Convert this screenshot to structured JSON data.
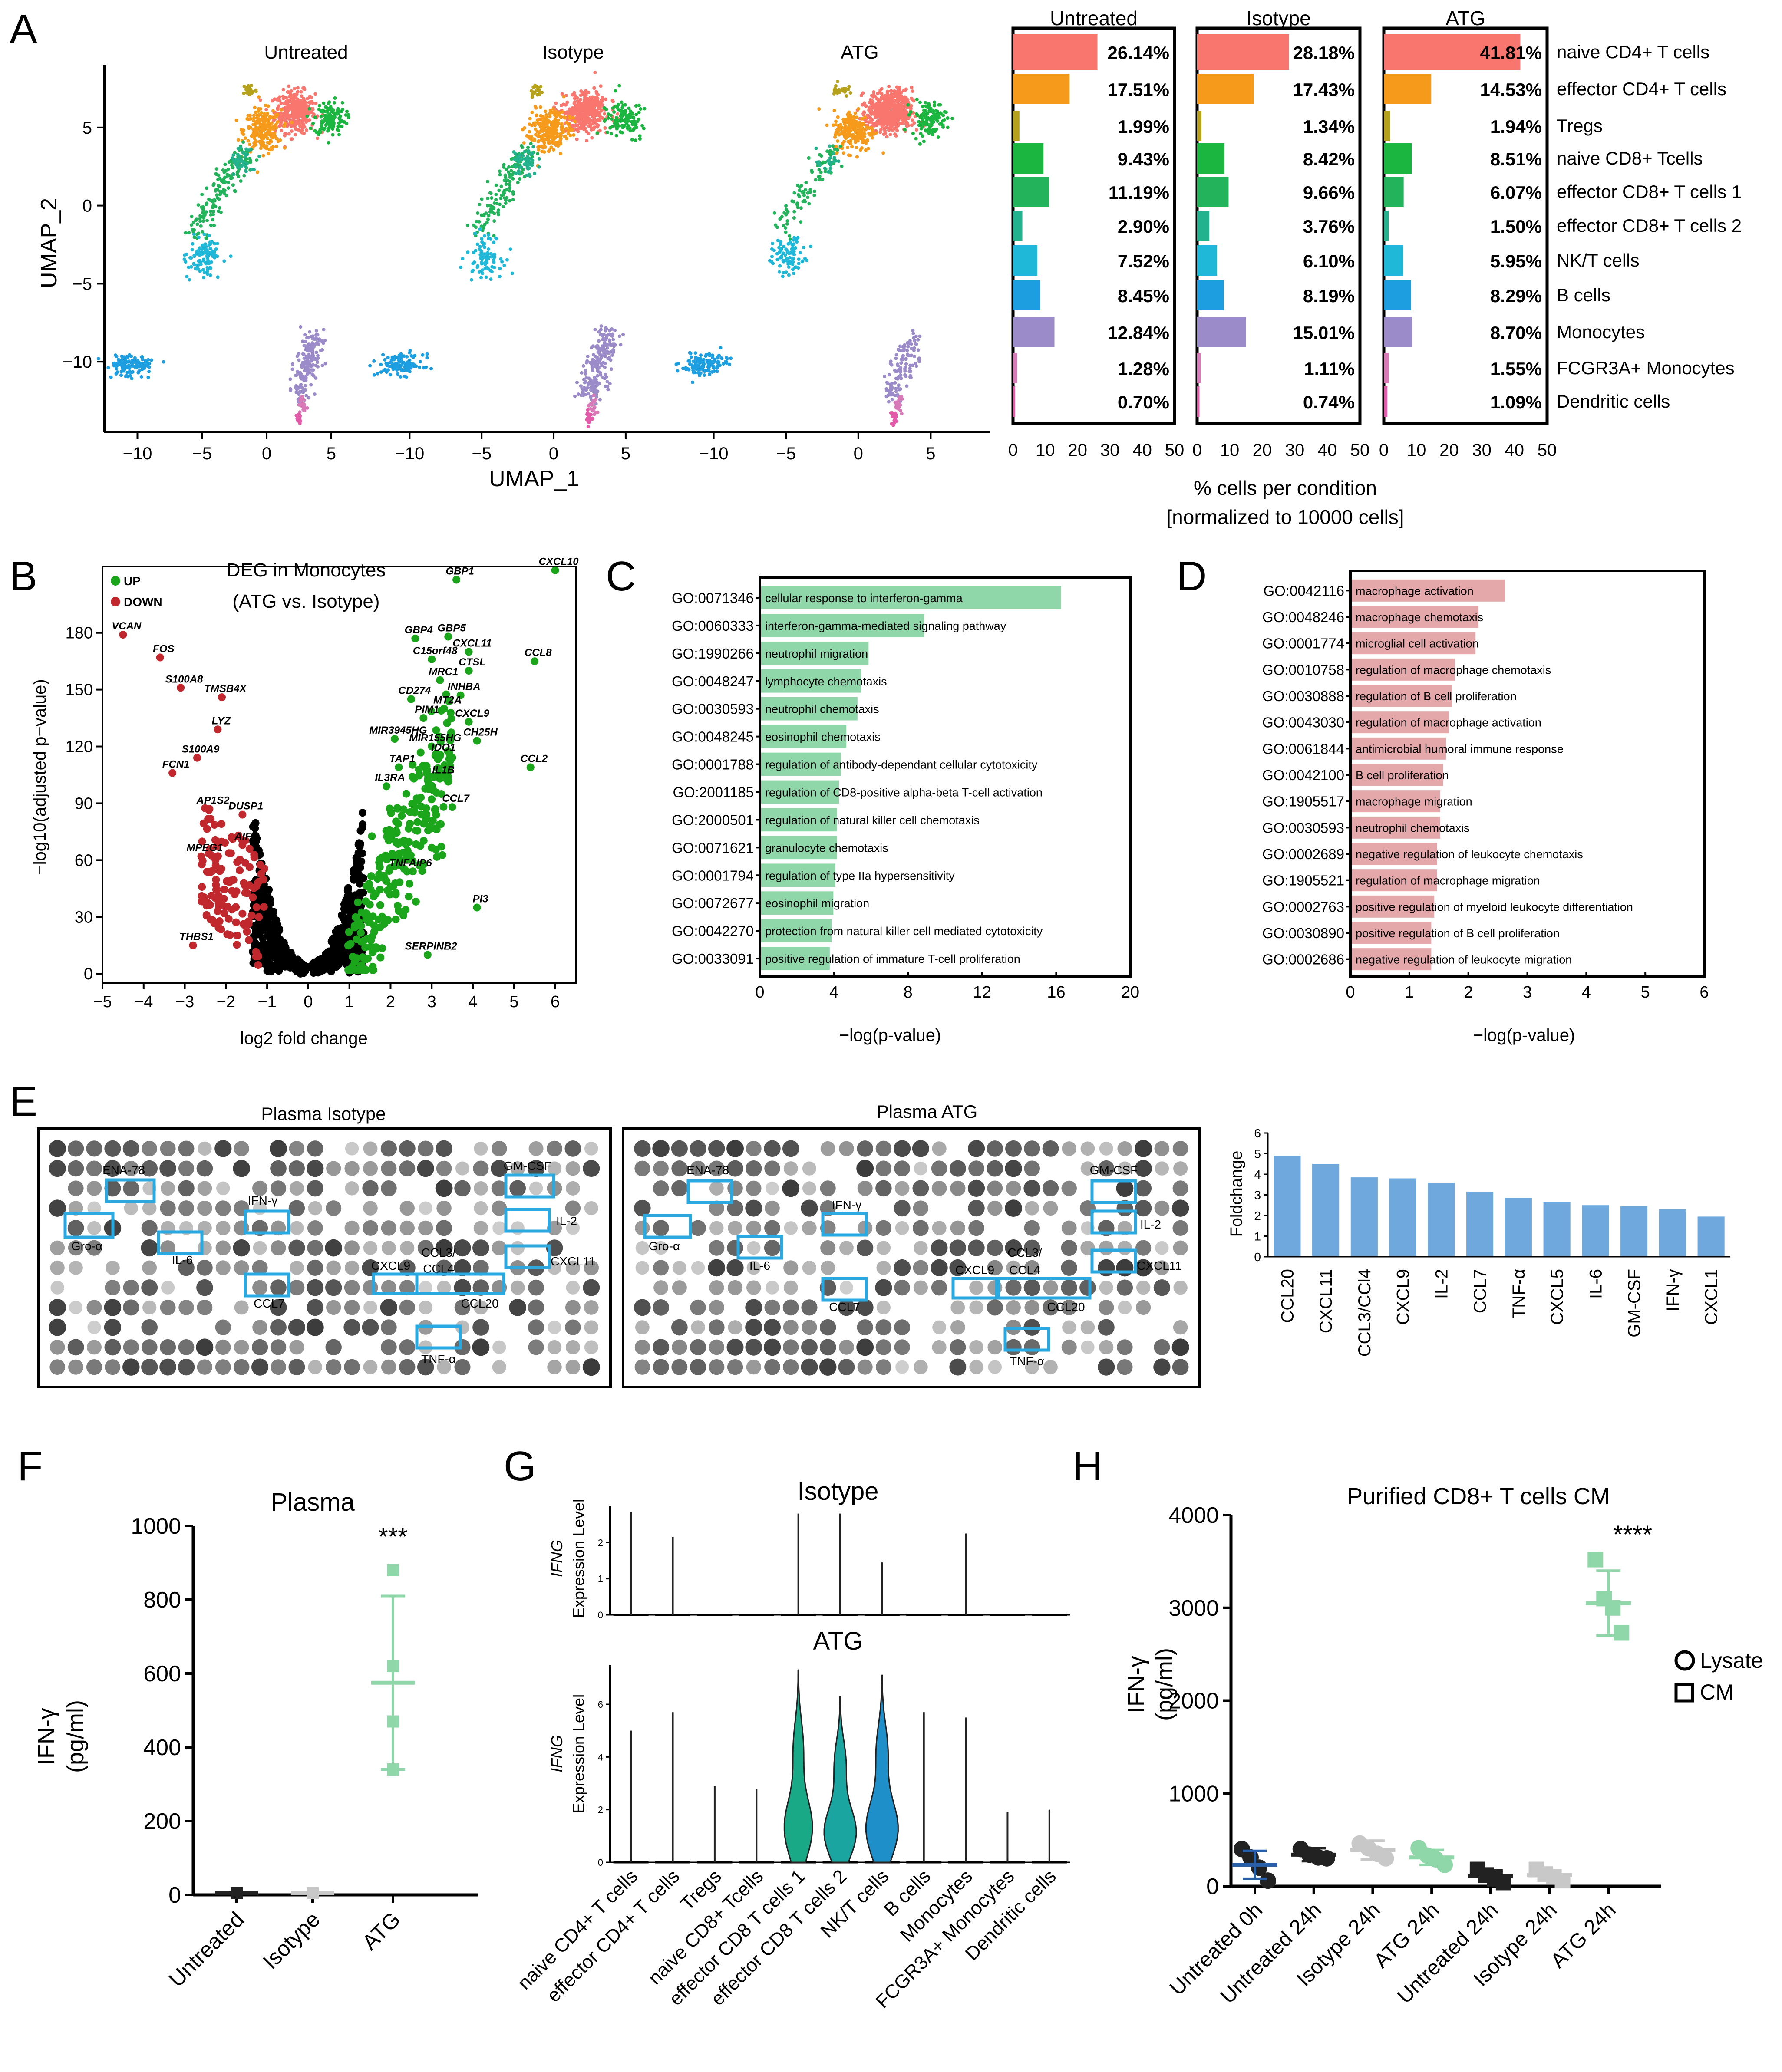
{
  "panel_letters": [
    "A",
    "B",
    "C",
    "D",
    "E",
    "F",
    "G",
    "H"
  ],
  "colors": {
    "naive_cd4": "#f8766d",
    "effector_cd4": "#f59a1a",
    "tregs": "#b5a11c",
    "naive_cd8": "#1ab63f",
    "eff_cd8_1": "#22b35b",
    "eff_cd8_2": "#22b38e",
    "nk_t": "#1fb8d9",
    "b_cells": "#1d9ee0",
    "monocytes": "#9b8cc9",
    "fcgr3a_mono": "#d97ab8",
    "dendritic": "#e35ba8",
    "up": "#1aa51a",
    "down": "#c0282d",
    "ns": "#000000",
    "go_green": "#8fd6a8",
    "go_pink": "#e4a7aa",
    "cytokine_bar": "#6fa8dc",
    "array_box": "#29a9e0",
    "untreated": "#222222",
    "isotype": "#c8c8c8",
    "atg": "#8fd6a8",
    "violin_green": "#1aa987",
    "violin_teal": "#1aa5a0",
    "violin_blue": "#1e8fc8"
  },
  "panel_a": {
    "umap": {
      "titles": [
        "Untreated",
        "Isotype",
        "ATG"
      ],
      "xlabel": "UMAP_1",
      "ylabel": "UMAP_2",
      "xticks": [
        -10,
        -5,
        0,
        5
      ],
      "yticks": [
        5,
        0,
        -5,
        -10
      ],
      "xlim": [
        -12,
        8.5
      ],
      "ylim": [
        -14.5,
        9
      ],
      "clusters": [
        {
          "cluster": "naive CD4+ T cells",
          "x": 2.2,
          "y": 6.0,
          "sx": 1.4,
          "sy": 1.2
        },
        {
          "cluster": "effector CD4+ T cells",
          "x": -0.3,
          "y": 4.8,
          "sx": 1.3,
          "sy": 1.2
        },
        {
          "cluster": "Tregs",
          "x": -1.3,
          "y": 7.4,
          "sx": 0.5,
          "sy": 0.4
        },
        {
          "cluster": "naive CD8+ Tcells",
          "x": 4.9,
          "y": 5.6,
          "sx": 1.1,
          "sy": 1.0
        },
        {
          "cluster": "effector CD8+ T cells 1",
          "x": -3.6,
          "y": 0.6,
          "sx": 1.1,
          "sy": 1.6
        },
        {
          "cluster": "effector CD8+ T cells 2",
          "x": -2.0,
          "y": 2.8,
          "sx": 0.8,
          "sy": 0.9
        },
        {
          "cluster": "NK/T cells",
          "x": -4.8,
          "y": -3.2,
          "sx": 1.1,
          "sy": 1.2
        },
        {
          "cluster": "B cells",
          "x": -10.6,
          "y": -10.2,
          "sx": 1.4,
          "sy": 0.6
        },
        {
          "cluster": "Monocytes",
          "x": 3.2,
          "y": -10.6,
          "sx": 1.0,
          "sy": 1.6
        },
        {
          "cluster": "FCGR3A+ Monocytes",
          "x": 2.8,
          "y": -12.8,
          "sx": 0.3,
          "sy": 0.6
        },
        {
          "cluster": "Dendritic cells",
          "x": 2.5,
          "y": -13.6,
          "sx": 0.2,
          "sy": 0.4
        }
      ]
    },
    "composition": {
      "conditions": [
        "Untreated",
        "Isotype",
        "ATG"
      ],
      "cell_types": [
        "naive CD4+ T cells",
        "effector CD4+ T cells",
        "Tregs",
        "naive CD8+ Tcells",
        "effector CD8+ T cells 1",
        "effector CD8+ T cells 2",
        "NK/T cells",
        "B cells",
        "Monocytes",
        "FCGR3A+ Monocytes",
        "Dendritic cells"
      ],
      "values": {
        "Untreated": [
          26.14,
          17.51,
          1.99,
          9.43,
          11.19,
          2.9,
          7.52,
          8.45,
          12.84,
          1.28,
          0.7
        ],
        "Isotype": [
          28.18,
          17.43,
          1.34,
          8.42,
          9.66,
          3.76,
          6.1,
          8.19,
          15.01,
          1.11,
          0.74
        ],
        "ATG": [
          41.81,
          14.53,
          1.94,
          8.51,
          6.07,
          1.5,
          5.95,
          8.29,
          8.7,
          1.55,
          1.09
        ]
      },
      "labels": {
        "Untreated": [
          "26.14%",
          "17.51%",
          "1.99%",
          "9.43%",
          "11.19%",
          "2.90%",
          "7.52%",
          "8.45%",
          "12.84%",
          "1.28%",
          "0.70%"
        ],
        "Isotype": [
          "28.18%",
          "17.43%",
          "1.34%",
          "8.42%",
          "9.66%",
          "3.76%",
          "6.10%",
          "8.19%",
          "15.01%",
          "1.11%",
          "0.74%"
        ],
        "ATG": [
          "41.81%",
          "14.53%",
          "1.94%",
          "8.51%",
          "6.07%",
          "1.50%",
          "5.95%",
          "8.29%",
          "8.70%",
          "1.55%",
          "1.09%"
        ]
      },
      "xticks": [
        0,
        10,
        20,
        30,
        40,
        50
      ],
      "xlim": [
        0,
        50
      ],
      "xlabel_line1": "% cells per condition",
      "xlabel_line2": "[normalized to 10000 cells]"
    }
  },
  "panel_b": {
    "title_line1": "DEG in Monocytes",
    "title_line2": "(ATG vs. Isotype)",
    "legend_up": "UP",
    "legend_down": "DOWN",
    "xlabel": "log2 fold change",
    "ylabel": "−log10(adjusted p−value)",
    "xticks": [
      -5,
      -4,
      -3,
      -2,
      -1,
      0,
      1,
      2,
      3,
      4,
      5,
      6
    ],
    "yticks": [
      0,
      30,
      60,
      90,
      120,
      150,
      180
    ],
    "xlim": [
      -5,
      6.5
    ],
    "ylim": [
      -5,
      215
    ],
    "up_genes": [
      {
        "gene": "GBP1",
        "x": 3.6,
        "y": 208
      },
      {
        "gene": "CXCL10",
        "x": 6.0,
        "y": 213
      },
      {
        "gene": "GBP4",
        "x": 2.6,
        "y": 177
      },
      {
        "gene": "GBP5",
        "x": 3.4,
        "y": 178
      },
      {
        "gene": "CXCL11",
        "x": 3.9,
        "y": 170
      },
      {
        "gene": "CCL8",
        "x": 5.5,
        "y": 165
      },
      {
        "gene": "C15orf48",
        "x": 3.0,
        "y": 166
      },
      {
        "gene": "CTSL",
        "x": 3.9,
        "y": 160
      },
      {
        "gene": "MRC1",
        "x": 3.2,
        "y": 155
      },
      {
        "gene": "INHBA",
        "x": 3.7,
        "y": 147
      },
      {
        "gene": "CD274",
        "x": 2.5,
        "y": 145
      },
      {
        "gene": "MT2A",
        "x": 3.3,
        "y": 140
      },
      {
        "gene": "PIM1",
        "x": 2.8,
        "y": 135
      },
      {
        "gene": "CXCL9",
        "x": 3.9,
        "y": 133
      },
      {
        "gene": "MIR3945HG",
        "x": 2.1,
        "y": 124
      },
      {
        "gene": "MIR155HG",
        "x": 3.0,
        "y": 120
      },
      {
        "gene": "CH25H",
        "x": 4.1,
        "y": 123
      },
      {
        "gene": "IDO1",
        "x": 3.2,
        "y": 115
      },
      {
        "gene": "TAP1",
        "x": 2.2,
        "y": 109
      },
      {
        "gene": "IL1B",
        "x": 3.2,
        "y": 103
      },
      {
        "gene": "CCL2",
        "x": 5.4,
        "y": 109
      },
      {
        "gene": "IL3RA",
        "x": 1.9,
        "y": 99
      },
      {
        "gene": "CCL7",
        "x": 3.5,
        "y": 88
      },
      {
        "gene": "TNFAIP6",
        "x": 2.4,
        "y": 54
      },
      {
        "gene": "PI3",
        "x": 4.1,
        "y": 35
      },
      {
        "gene": "SERPINB2",
        "x": 2.9,
        "y": 10
      }
    ],
    "down_genes": [
      {
        "gene": "VCAN",
        "x": -4.5,
        "y": 179
      },
      {
        "gene": "FOS",
        "x": -3.6,
        "y": 167
      },
      {
        "gene": "S100A8",
        "x": -3.1,
        "y": 151
      },
      {
        "gene": "TMSB4X",
        "x": -2.1,
        "y": 146
      },
      {
        "gene": "LYZ",
        "x": -2.2,
        "y": 129
      },
      {
        "gene": "S100A9",
        "x": -2.7,
        "y": 114
      },
      {
        "gene": "FCN1",
        "x": -3.3,
        "y": 106
      },
      {
        "gene": "AP1S2",
        "x": -2.4,
        "y": 87
      },
      {
        "gene": "DUSP1",
        "x": -1.6,
        "y": 84
      },
      {
        "gene": "AIF1",
        "x": -1.6,
        "y": 68
      },
      {
        "gene": "MPEG1",
        "x": -2.6,
        "y": 62
      },
      {
        "gene": "THBS1",
        "x": -2.8,
        "y": 15
      }
    ]
  },
  "panel_c": {
    "xlabel": "−log(p-value)",
    "xticks": [
      0,
      4,
      8,
      12,
      16,
      20
    ],
    "xlim": [
      0,
      20
    ],
    "terms": [
      {
        "id": "GO:0071346",
        "label": "cellular response to interferon-gamma",
        "value": 16.2
      },
      {
        "id": "GO:0060333",
        "label": "interferon-gamma-mediated signaling pathway",
        "value": 8.8
      },
      {
        "id": "GO:1990266",
        "label": "neutrophil migration",
        "value": 5.8
      },
      {
        "id": "GO:0048247",
        "label": "lymphocyte chemotaxis",
        "value": 5.4
      },
      {
        "id": "GO:0030593",
        "label": "neutrophil chemotaxis",
        "value": 5.2
      },
      {
        "id": "GO:0048245",
        "label": "eosinophil chemotaxis",
        "value": 4.6
      },
      {
        "id": "GO:0001788",
        "label": "regulation of antibody-dependant cellular cytotoxicity",
        "value": 4.3
      },
      {
        "id": "GO:2001185",
        "label": "regulation of CD8-positive alpha-beta T-cell activation",
        "value": 4.2
      },
      {
        "id": "GO:2000501",
        "label": "regulation of natural killer cell chemotaxis",
        "value": 4.1
      },
      {
        "id": "GO:0071621",
        "label": "granulocyte chemotaxis",
        "value": 4.1
      },
      {
        "id": "GO:0001794",
        "label": "regulation of type IIa hypersensitivity",
        "value": 4.0
      },
      {
        "id": "GO:0072677",
        "label": "eosinophil migration",
        "value": 3.9
      },
      {
        "id": "GO:0042270",
        "label": "protection from natural killer cell mediated cytotoxicity",
        "value": 3.8
      },
      {
        "id": "GO:0033091",
        "label": "positive regulation of immature T-cell proliferation",
        "value": 3.7
      }
    ]
  },
  "panel_d": {
    "xlabel": "−log(p-value)",
    "xticks": [
      0,
      1,
      2,
      3,
      4,
      5,
      6
    ],
    "xlim": [
      0,
      6
    ],
    "terms": [
      {
        "id": "GO:0042116",
        "label": "macrophage activation",
        "value": 2.6
      },
      {
        "id": "GO:0048246",
        "label": "macrophage chemotaxis",
        "value": 2.15
      },
      {
        "id": "GO:0001774",
        "label": "microglial cell activation",
        "value": 2.1
      },
      {
        "id": "GO:0010758",
        "label": "regulation of macrophage chemotaxis",
        "value": 1.75
      },
      {
        "id": "GO:0030888",
        "label": "regulation of B cell proliferation",
        "value": 1.7
      },
      {
        "id": "GO:0043030",
        "label": "regulation of macrophage activation",
        "value": 1.65
      },
      {
        "id": "GO:0061844",
        "label": "antimicrobial humoral immune response",
        "value": 1.6
      },
      {
        "id": "GO:0042100",
        "label": "B cell proliferation",
        "value": 1.55
      },
      {
        "id": "GO:1905517",
        "label": "macrophage migration",
        "value": 1.5
      },
      {
        "id": "GO:0030593",
        "label": "neutrophil chemotaxis",
        "value": 1.5
      },
      {
        "id": "GO:0002689",
        "label": "negative regulation of leukocyte chemotaxis",
        "value": 1.45
      },
      {
        "id": "GO:1905521",
        "label": "regulation of macrophage migration",
        "value": 1.45
      },
      {
        "id": "GO:0002763",
        "label": "positive regulation of myeloid leukocyte differentiation",
        "value": 1.4
      },
      {
        "id": "GO:0030890",
        "label": "positive regulation of B cell proliferation",
        "value": 1.35
      },
      {
        "id": "GO:0002686",
        "label": "negative regulation of leukocyte migration",
        "value": 1.35
      }
    ]
  },
  "panel_e": {
    "array_titles": [
      "Plasma Isotype",
      "Plasma ATG"
    ],
    "array_labels": [
      "ENA-78",
      "GM-CSF",
      "IFN-γ",
      "IL-2",
      "Gro-α",
      "IL-6",
      "CCL3/",
      "CCL4",
      "CXCL11",
      "CXCL9",
      "CCL20",
      "CCL7",
      "TNF-α"
    ],
    "bar": {
      "ylabel": "Foldchange",
      "yticks": [
        0,
        1,
        2,
        3,
        4,
        5,
        6
      ],
      "ylim": [
        0,
        6
      ],
      "categories": [
        "CCL20",
        "CXCL11",
        "CCL3/CCl4",
        "CXCL9",
        "IL-2",
        "CCL7",
        "TNF-α",
        "CXCL5",
        "IL-6",
        "GM-CSF",
        "IFN-γ",
        "CXCL1"
      ],
      "values": [
        4.9,
        4.5,
        3.85,
        3.8,
        3.6,
        3.15,
        2.85,
        2.65,
        2.5,
        2.45,
        2.3,
        1.95
      ]
    }
  },
  "panel_f": {
    "title": "Plasma",
    "ylabel_line1": "IFN-γ",
    "ylabel_line2": "(pg/ml)",
    "yticks": [
      0,
      200,
      400,
      600,
      800,
      1000
    ],
    "ylim": [
      0,
      1000
    ],
    "categories": [
      "Untreated",
      "Isotype",
      "ATG"
    ],
    "means": [
      5,
      5,
      575
    ],
    "sd": [
      0,
      0,
      235
    ],
    "points": [
      [
        5,
        5,
        5,
        5
      ],
      [
        5,
        5,
        5,
        5
      ],
      [
        880,
        620,
        470,
        340
      ]
    ],
    "significance": "***"
  },
  "panel_g": {
    "titles": [
      "Isotype",
      "ATG"
    ],
    "ylabel_gene": "IFNG",
    "ylabel_rest": "Expression Level",
    "isotype_yticks": [
      0,
      1,
      2
    ],
    "isotype_ylim": [
      0,
      3
    ],
    "atg_yticks": [
      0,
      2,
      4,
      6
    ],
    "atg_ylim": [
      0,
      7.5
    ],
    "categories": [
      "naive CD4+ T cells",
      "effector CD4+ T cells",
      "Tregs",
      "naive CD8+ Tcells",
      "effector CD8 T cells 1",
      "effector CD8 T cells 2",
      "NK/T cells",
      "B cells",
      "Monocytes",
      "FCGR3A+ Monocytes",
      "Dendritic cells"
    ],
    "isotype_max": [
      2.85,
      2.15,
      0,
      0,
      2.8,
      2.8,
      1.45,
      0,
      2.25,
      0,
      0
    ],
    "atg_max": [
      5.0,
      5.7,
      2.9,
      2.8,
      7.3,
      6.3,
      7.1,
      5.7,
      5.5,
      1.9,
      2.0
    ],
    "atg_violin_width": [
      0,
      0,
      0,
      0,
      0.7,
      0.8,
      0.8,
      0,
      0,
      0,
      0
    ]
  },
  "panel_h": {
    "title": "Purified CD8+ T cells CM",
    "ylabel_line1": "IFN-γ",
    "ylabel_line2": "(pg/ml)",
    "yticks": [
      0,
      1000,
      2000,
      3000,
      4000
    ],
    "ylim": [
      0,
      4000
    ],
    "categories": [
      "Untreated 0h",
      "Untreated 24h",
      "Isotype 24h",
      "ATG 24h",
      "Untreated 24h",
      "Isotype 24h",
      "ATG 24h"
    ],
    "sample_type": [
      "Lysate",
      "Lysate",
      "Lysate",
      "Lysate",
      "CM",
      "CM",
      "CM"
    ],
    "means": [
      230,
      340,
      390,
      310,
      110,
      120,
      3050
    ],
    "sd": [
      150,
      70,
      100,
      80,
      60,
      50,
      350
    ],
    "points": [
      [
        400,
        310,
        200,
        60
      ],
      [
        400,
        340,
        310,
        300
      ],
      [
        460,
        410,
        350,
        300
      ],
      [
        410,
        330,
        290,
        230
      ],
      [
        180,
        120,
        80,
        40
      ],
      [
        180,
        130,
        100,
        60
      ],
      [
        3520,
        3100,
        3000,
        2730
      ]
    ],
    "significance": "****",
    "legend": [
      "Lysate",
      "CM"
    ]
  }
}
